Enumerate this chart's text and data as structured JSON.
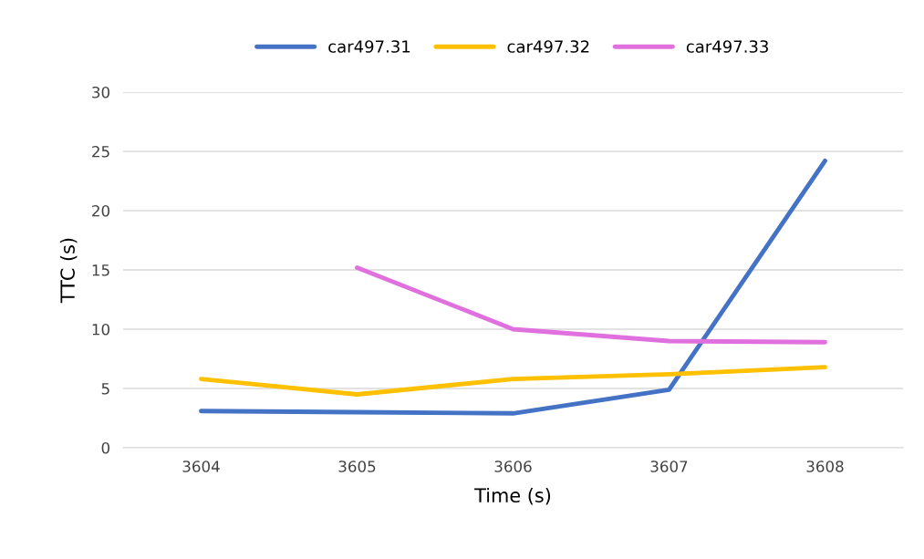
{
  "chart_data": {
    "type": "line",
    "xlabel": "Time (s)",
    "ylabel": "TTC (s)",
    "categories": [
      "3604",
      "3605",
      "3606",
      "3607",
      "3608"
    ],
    "series": [
      {
        "name": "car497.31",
        "color": "#4472c4",
        "values": [
          3.1,
          3.0,
          2.9,
          4.9,
          24.2
        ]
      },
      {
        "name": "car497.32",
        "color": "#ffc000",
        "values": [
          5.8,
          4.5,
          5.8,
          6.2,
          6.8
        ]
      },
      {
        "name": "car497.33",
        "color": "#e070de",
        "values": [
          null,
          15.2,
          10.0,
          9.0,
          8.9
        ]
      }
    ],
    "ylim": [
      0,
      30
    ],
    "yticks": [
      0,
      5,
      10,
      15,
      20,
      25,
      30
    ],
    "grid": "y",
    "legend": "top",
    "marker": "none",
    "line_style": "solid"
  }
}
